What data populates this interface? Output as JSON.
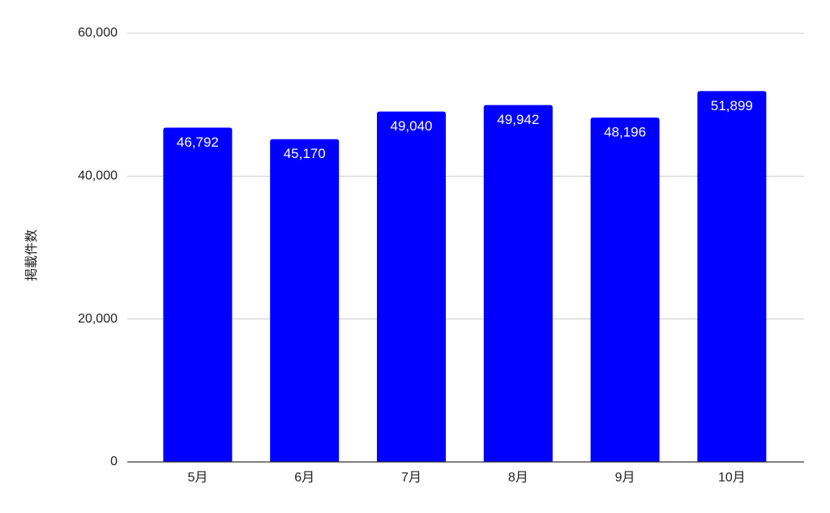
{
  "chart_data": {
    "type": "bar",
    "y_label": "掲載件数",
    "categories": [
      "5月",
      "6月",
      "7月",
      "8月",
      "9月",
      "10月"
    ],
    "values": [
      46792,
      45170,
      49040,
      49942,
      48196,
      51899
    ],
    "value_labels": [
      "46,792",
      "45,170",
      "49,040",
      "49,942",
      "48,196",
      "51,899"
    ],
    "color": "#0000ff",
    "ylim": [
      0,
      60000
    ],
    "yticks": [
      0,
      {
        "value": 20000,
        "label": "20,000"
      },
      {
        "value": 40000,
        "label": "40,000"
      },
      {
        "value": 60000,
        "label": "60,000"
      }
    ],
    "grid": true
  }
}
